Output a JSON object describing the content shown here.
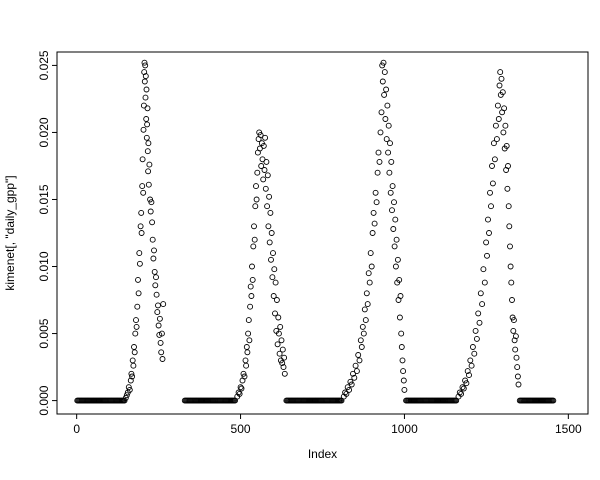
{
  "figure": {
    "background": "#ffffff",
    "foreground": "#000000"
  },
  "chart_data": {
    "type": "scatter",
    "title": "",
    "xlabel": "Index",
    "ylabel": "kimenet[, \"daily_gpp\"]",
    "xlim": [
      0,
      1500
    ],
    "ylim": [
      0,
      0.025
    ],
    "x_ticks": [
      0,
      500,
      1000,
      1500
    ],
    "x_tick_labels": [
      "0",
      "500",
      "1000",
      "1500"
    ],
    "y_ticks": [
      0,
      0.005,
      0.01,
      0.015,
      0.02,
      0.025
    ],
    "y_tick_labels": [
      "0.000",
      "0.005",
      "0.010",
      "0.015",
      "0.020",
      "0.025"
    ],
    "grid": false,
    "legend": null,
    "marker": "open-circle",
    "marker_color": "#000000",
    "zero_runs": [
      {
        "from": 2,
        "to": 148,
        "step": 3,
        "y": 0
      },
      {
        "from": 330,
        "to": 485,
        "step": 3,
        "y": 0
      },
      {
        "from": 640,
        "to": 810,
        "step": 3,
        "y": 0
      },
      {
        "from": 1005,
        "to": 1160,
        "step": 3,
        "y": 0
      },
      {
        "from": 1352,
        "to": 1455,
        "step": 3,
        "y": 0
      }
    ],
    "points": [
      [
        150,
        0.0002
      ],
      [
        153,
        0.0004
      ],
      [
        156,
        0.0006
      ],
      [
        159,
        0.001
      ],
      [
        162,
        0.0008
      ],
      [
        165,
        0.0015
      ],
      [
        167,
        0.002
      ],
      [
        169,
        0.0018
      ],
      [
        171,
        0.003
      ],
      [
        173,
        0.0026
      ],
      [
        175,
        0.004
      ],
      [
        177,
        0.0036
      ],
      [
        179,
        0.005
      ],
      [
        181,
        0.006
      ],
      [
        183,
        0.0055
      ],
      [
        185,
        0.007
      ],
      [
        187,
        0.009
      ],
      [
        189,
        0.008
      ],
      [
        191,
        0.011
      ],
      [
        193,
        0.0102
      ],
      [
        195,
        0.013
      ],
      [
        197,
        0.014
      ],
      [
        198,
        0.0125
      ],
      [
        200,
        0.016
      ],
      [
        201,
        0.018
      ],
      [
        203,
        0.0155
      ],
      [
        204,
        0.0202
      ],
      [
        205,
        0.022
      ],
      [
        206,
        0.0245
      ],
      [
        207,
        0.0252
      ],
      [
        208,
        0.0238
      ],
      [
        209,
        0.025
      ],
      [
        210,
        0.0226
      ],
      [
        211,
        0.0242
      ],
      [
        212,
        0.021
      ],
      [
        213,
        0.0232
      ],
      [
        214,
        0.0196
      ],
      [
        215,
        0.0206
      ],
      [
        216,
        0.0218
      ],
      [
        217,
        0.0186
      ],
      [
        218,
        0.0171
      ],
      [
        219,
        0.0192
      ],
      [
        220,
        0.0161
      ],
      [
        222,
        0.0176
      ],
      [
        224,
        0.015
      ],
      [
        226,
        0.0141
      ],
      [
        228,
        0.0148
      ],
      [
        230,
        0.0133
      ],
      [
        232,
        0.012
      ],
      [
        234,
        0.0106
      ],
      [
        236,
        0.0112
      ],
      [
        238,
        0.0096
      ],
      [
        240,
        0.0086
      ],
      [
        242,
        0.0092
      ],
      [
        244,
        0.0079
      ],
      [
        246,
        0.0066
      ],
      [
        248,
        0.0071
      ],
      [
        250,
        0.0056
      ],
      [
        252,
        0.0049
      ],
      [
        254,
        0.0061
      ],
      [
        256,
        0.0043
      ],
      [
        258,
        0.0036
      ],
      [
        260,
        0.005
      ],
      [
        262,
        0.0031
      ],
      [
        264,
        0.0072
      ],
      [
        490,
        0.0003
      ],
      [
        494,
        0.0006
      ],
      [
        497,
        0.0005
      ],
      [
        500,
        0.001
      ],
      [
        503,
        0.0009
      ],
      [
        506,
        0.0015
      ],
      [
        509,
        0.002
      ],
      [
        512,
        0.0018
      ],
      [
        515,
        0.003
      ],
      [
        517,
        0.0026
      ],
      [
        519,
        0.004
      ],
      [
        521,
        0.0036
      ],
      [
        523,
        0.005
      ],
      [
        525,
        0.006
      ],
      [
        527,
        0.0045
      ],
      [
        529,
        0.007
      ],
      [
        531,
        0.0085
      ],
      [
        533,
        0.0078
      ],
      [
        535,
        0.01
      ],
      [
        537,
        0.009
      ],
      [
        539,
        0.0115
      ],
      [
        541,
        0.013
      ],
      [
        543,
        0.012
      ],
      [
        545,
        0.0145
      ],
      [
        547,
        0.016
      ],
      [
        549,
        0.015
      ],
      [
        551,
        0.017
      ],
      [
        553,
        0.0185
      ],
      [
        555,
        0.0195
      ],
      [
        557,
        0.02
      ],
      [
        559,
        0.0188
      ],
      [
        561,
        0.0198
      ],
      [
        563,
        0.0175
      ],
      [
        565,
        0.0192
      ],
      [
        567,
        0.018
      ],
      [
        569,
        0.0165
      ],
      [
        571,
        0.019
      ],
      [
        573,
        0.0172
      ],
      [
        575,
        0.0196
      ],
      [
        577,
        0.0158
      ],
      [
        579,
        0.0178
      ],
      [
        581,
        0.0145
      ],
      [
        583,
        0.0168
      ],
      [
        585,
        0.013
      ],
      [
        587,
        0.0152
      ],
      [
        589,
        0.0118
      ],
      [
        591,
        0.014
      ],
      [
        593,
        0.0105
      ],
      [
        595,
        0.0125
      ],
      [
        597,
        0.0092
      ],
      [
        599,
        0.011
      ],
      [
        601,
        0.0078
      ],
      [
        603,
        0.0098
      ],
      [
        605,
        0.0065
      ],
      [
        607,
        0.0088
      ],
      [
        609,
        0.0052
      ],
      [
        611,
        0.0075
      ],
      [
        613,
        0.0042
      ],
      [
        615,
        0.0062
      ],
      [
        617,
        0.005
      ],
      [
        619,
        0.0035
      ],
      [
        621,
        0.0055
      ],
      [
        623,
        0.003
      ],
      [
        625,
        0.0045
      ],
      [
        627,
        0.0028
      ],
      [
        629,
        0.0038
      ],
      [
        631,
        0.0025
      ],
      [
        633,
        0.0032
      ],
      [
        635,
        0.002
      ],
      [
        815,
        0.0003
      ],
      [
        819,
        0.0006
      ],
      [
        823,
        0.0005
      ],
      [
        827,
        0.001
      ],
      [
        831,
        0.0008
      ],
      [
        835,
        0.0014
      ],
      [
        839,
        0.0012
      ],
      [
        843,
        0.002
      ],
      [
        847,
        0.0017
      ],
      [
        851,
        0.0026
      ],
      [
        855,
        0.0022
      ],
      [
        859,
        0.0034
      ],
      [
        863,
        0.003
      ],
      [
        867,
        0.0045
      ],
      [
        870,
        0.004
      ],
      [
        873,
        0.0055
      ],
      [
        876,
        0.005
      ],
      [
        879,
        0.0068
      ],
      [
        882,
        0.006
      ],
      [
        885,
        0.008
      ],
      [
        888,
        0.0072
      ],
      [
        891,
        0.0095
      ],
      [
        894,
        0.0088
      ],
      [
        897,
        0.011
      ],
      [
        900,
        0.01
      ],
      [
        903,
        0.0125
      ],
      [
        906,
        0.014
      ],
      [
        909,
        0.0132
      ],
      [
        912,
        0.0155
      ],
      [
        915,
        0.0148
      ],
      [
        918,
        0.017
      ],
      [
        921,
        0.0185
      ],
      [
        924,
        0.0178
      ],
      [
        927,
        0.02
      ],
      [
        930,
        0.0215
      ],
      [
        932,
        0.025
      ],
      [
        934,
        0.0238
      ],
      [
        936,
        0.0252
      ],
      [
        938,
        0.0228
      ],
      [
        940,
        0.0245
      ],
      [
        942,
        0.021
      ],
      [
        944,
        0.0232
      ],
      [
        946,
        0.0195
      ],
      [
        948,
        0.022
      ],
      [
        950,
        0.0185
      ],
      [
        952,
        0.0205
      ],
      [
        954,
        0.017
      ],
      [
        956,
        0.0192
      ],
      [
        958,
        0.0155
      ],
      [
        960,
        0.0178
      ],
      [
        962,
        0.0142
      ],
      [
        964,
        0.016
      ],
      [
        966,
        0.0128
      ],
      [
        968,
        0.0148
      ],
      [
        970,
        0.0115
      ],
      [
        972,
        0.0135
      ],
      [
        974,
        0.01
      ],
      [
        976,
        0.012
      ],
      [
        978,
        0.0088
      ],
      [
        980,
        0.0105
      ],
      [
        982,
        0.0075
      ],
      [
        984,
        0.009
      ],
      [
        986,
        0.0062
      ],
      [
        988,
        0.0078
      ],
      [
        990,
        0.005
      ],
      [
        992,
        0.004
      ],
      [
        994,
        0.003
      ],
      [
        996,
        0.0022
      ],
      [
        998,
        0.0015
      ],
      [
        1000,
        0.0008
      ],
      [
        1165,
        0.0003
      ],
      [
        1169,
        0.0006
      ],
      [
        1173,
        0.0005
      ],
      [
        1177,
        0.001
      ],
      [
        1181,
        0.0009
      ],
      [
        1185,
        0.0015
      ],
      [
        1189,
        0.0013
      ],
      [
        1193,
        0.0022
      ],
      [
        1197,
        0.0019
      ],
      [
        1201,
        0.003
      ],
      [
        1205,
        0.0026
      ],
      [
        1209,
        0.004
      ],
      [
        1213,
        0.0035
      ],
      [
        1217,
        0.0052
      ],
      [
        1221,
        0.0046
      ],
      [
        1225,
        0.0065
      ],
      [
        1229,
        0.0058
      ],
      [
        1233,
        0.008
      ],
      [
        1237,
        0.0072
      ],
      [
        1241,
        0.0098
      ],
      [
        1245,
        0.0088
      ],
      [
        1249,
        0.0118
      ],
      [
        1252,
        0.0108
      ],
      [
        1255,
        0.0135
      ],
      [
        1258,
        0.0125
      ],
      [
        1261,
        0.0155
      ],
      [
        1264,
        0.0145
      ],
      [
        1267,
        0.0175
      ],
      [
        1270,
        0.0162
      ],
      [
        1273,
        0.0192
      ],
      [
        1276,
        0.018
      ],
      [
        1279,
        0.0205
      ],
      [
        1282,
        0.0195
      ],
      [
        1285,
        0.022
      ],
      [
        1288,
        0.021
      ],
      [
        1290,
        0.0235
      ],
      [
        1292,
        0.0245
      ],
      [
        1294,
        0.0228
      ],
      [
        1296,
        0.024
      ],
      [
        1298,
        0.0215
      ],
      [
        1300,
        0.023
      ],
      [
        1302,
        0.02
      ],
      [
        1304,
        0.0218
      ],
      [
        1306,
        0.0188
      ],
      [
        1308,
        0.0205
      ],
      [
        1310,
        0.0172
      ],
      [
        1312,
        0.019
      ],
      [
        1314,
        0.0158
      ],
      [
        1316,
        0.0175
      ],
      [
        1318,
        0.0145
      ],
      [
        1320,
        0.013
      ],
      [
        1322,
        0.0115
      ],
      [
        1324,
        0.01
      ],
      [
        1326,
        0.0088
      ],
      [
        1328,
        0.0075
      ],
      [
        1330,
        0.0062
      ],
      [
        1332,
        0.0052
      ],
      [
        1334,
        0.006
      ],
      [
        1336,
        0.0045
      ],
      [
        1338,
        0.0038
      ],
      [
        1340,
        0.0048
      ],
      [
        1342,
        0.0032
      ],
      [
        1344,
        0.0025
      ],
      [
        1346,
        0.0018
      ],
      [
        1348,
        0.0012
      ]
    ]
  }
}
